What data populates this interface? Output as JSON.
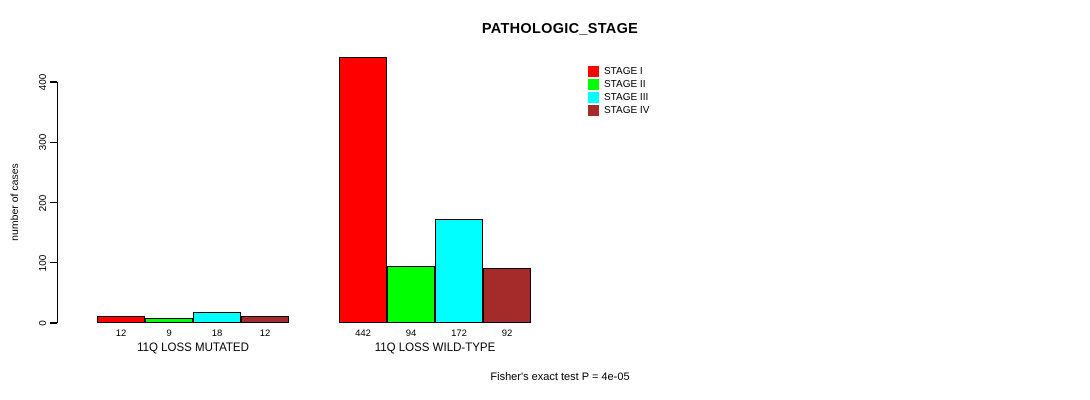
{
  "title": "PATHOLOGIC_STAGE",
  "footer": "Fisher's exact test P = 4e-05",
  "chart_data": {
    "type": "bar",
    "grouped": true,
    "title": "PATHOLOGIC_STAGE",
    "xlabel": "",
    "ylabel": "number of cases",
    "categories": [
      "11Q LOSS MUTATED",
      "11Q LOSS WILD-TYPE"
    ],
    "series": [
      {
        "name": "STAGE I",
        "color": "#FF0000",
        "values": [
          12,
          442
        ]
      },
      {
        "name": "STAGE II",
        "color": "#00FF00",
        "values": [
          9,
          94
        ]
      },
      {
        "name": "STAGE III",
        "color": "#00FFFF",
        "values": [
          18,
          172
        ]
      },
      {
        "name": "STAGE IV",
        "color": "#A52A2A",
        "values": [
          12,
          92
        ]
      }
    ],
    "bar_value_labels": [
      [
        "12",
        "9",
        "18",
        "12"
      ],
      [
        "442",
        "94",
        "172",
        "92"
      ]
    ],
    "yticks": [
      0,
      100,
      200,
      300,
      400
    ],
    "ylim": [
      0,
      442
    ],
    "grid": false,
    "legend_position": "top-center",
    "legend_entries": [
      "STAGE I",
      "STAGE II",
      "STAGE III",
      "STAGE IV"
    ],
    "annotation": "Fisher's exact test P = 4e-05"
  }
}
